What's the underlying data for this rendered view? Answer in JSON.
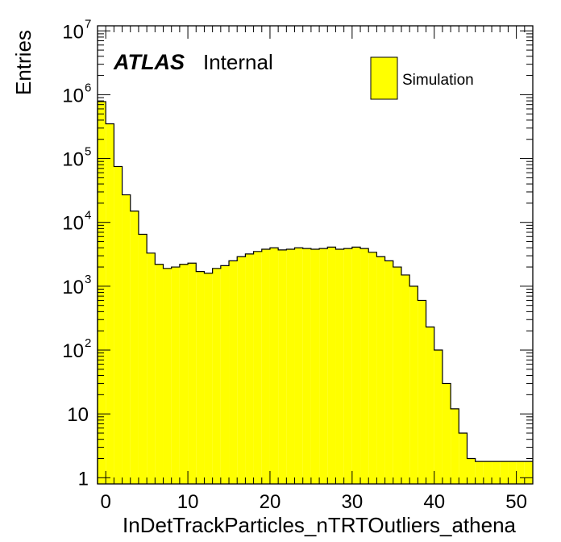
{
  "chart_data": {
    "type": "bar",
    "style": "histogram",
    "xlabel": "InDetTrackParticles_nTRTOutliers_athena",
    "ylabel": "Entries",
    "xlim": [
      -1,
      52
    ],
    "ylim": [
      0.8,
      12000000
    ],
    "yscale": "log",
    "grid": false,
    "fill_color": "#ffff00",
    "line_color": "#000000",
    "bin_width": 1,
    "bin_starts": [
      -1,
      0,
      1,
      2,
      3,
      4,
      5,
      6,
      7,
      8,
      9,
      10,
      11,
      12,
      13,
      14,
      15,
      16,
      17,
      18,
      19,
      20,
      21,
      22,
      23,
      24,
      25,
      26,
      27,
      28,
      29,
      30,
      31,
      32,
      33,
      34,
      35,
      36,
      37,
      38,
      39,
      40,
      41,
      42,
      43,
      44,
      45,
      46,
      47,
      48,
      49,
      50,
      51
    ],
    "values": [
      780000,
      350000,
      75000,
      27000,
      15000,
      6500,
      3300,
      2200,
      1900,
      2000,
      2200,
      2300,
      1700,
      1600,
      1900,
      2100,
      2500,
      2900,
      3200,
      3500,
      3800,
      4000,
      3700,
      3800,
      4000,
      3900,
      3800,
      3900,
      4100,
      3800,
      3900,
      4100,
      3900,
      3400,
      2900,
      2500,
      2000,
      1500,
      1000,
      600,
      230,
      100,
      30,
      12,
      5,
      2,
      1.8,
      1.8,
      1.8,
      1.8,
      1.8,
      1.8,
      1.8
    ],
    "x_ticks": [
      {
        "value": 0,
        "label": "0"
      },
      {
        "value": 10,
        "label": "10"
      },
      {
        "value": 20,
        "label": "20"
      },
      {
        "value": 30,
        "label": "30"
      },
      {
        "value": 40,
        "label": "40"
      },
      {
        "value": 50,
        "label": "50"
      }
    ],
    "y_ticks": [
      {
        "value": 1,
        "mant": "1",
        "exp": ""
      },
      {
        "value": 10,
        "mant": "10",
        "exp": ""
      },
      {
        "value": 100,
        "mant": "10",
        "exp": "2"
      },
      {
        "value": 1000,
        "mant": "10",
        "exp": "3"
      },
      {
        "value": 10000,
        "mant": "10",
        "exp": "4"
      },
      {
        "value": 100000,
        "mant": "10",
        "exp": "5"
      },
      {
        "value": 1000000,
        "mant": "10",
        "exp": "6"
      },
      {
        "value": 10000000,
        "mant": "10",
        "exp": "7"
      }
    ],
    "annotations": {
      "experiment": "ATLAS",
      "status": "Internal"
    },
    "legend": {
      "position": "top-right",
      "entries": [
        {
          "label": "Simulation",
          "color": "#ffff00"
        }
      ]
    }
  }
}
